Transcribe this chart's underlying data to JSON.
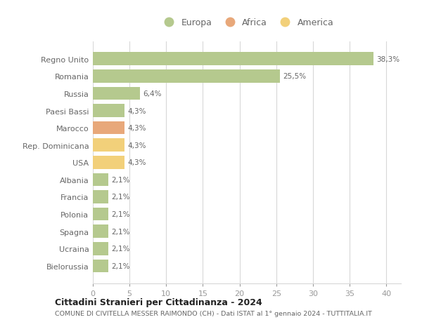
{
  "categories": [
    "Bielorussia",
    "Ucraina",
    "Spagna",
    "Polonia",
    "Francia",
    "Albania",
    "USA",
    "Rep. Dominicana",
    "Marocco",
    "Paesi Bassi",
    "Russia",
    "Romania",
    "Regno Unito"
  ],
  "values": [
    2.1,
    2.1,
    2.1,
    2.1,
    2.1,
    2.1,
    4.3,
    4.3,
    4.3,
    4.3,
    6.4,
    25.5,
    38.3
  ],
  "labels": [
    "2,1%",
    "2,1%",
    "2,1%",
    "2,1%",
    "2,1%",
    "2,1%",
    "4,3%",
    "4,3%",
    "4,3%",
    "4,3%",
    "6,4%",
    "25,5%",
    "38,3%"
  ],
  "colors": [
    "#b5c98e",
    "#b5c98e",
    "#b5c98e",
    "#b5c98e",
    "#b5c98e",
    "#b5c98e",
    "#f2d07a",
    "#f2d07a",
    "#e8a87a",
    "#b5c98e",
    "#b5c98e",
    "#b5c98e",
    "#b5c98e"
  ],
  "legend_labels": [
    "Europa",
    "Africa",
    "America"
  ],
  "legend_colors": [
    "#b5c98e",
    "#e8a87a",
    "#f2d07a"
  ],
  "title": "Cittadini Stranieri per Cittadinanza - 2024",
  "subtitle": "COMUNE DI CIVITELLA MESSER RAIMONDO (CH) - Dati ISTAT al 1° gennaio 2024 - TUTTITALIA.IT",
  "xlim": [
    0,
    42
  ],
  "xticks": [
    0,
    5,
    10,
    15,
    20,
    25,
    30,
    35,
    40
  ],
  "background_color": "#ffffff",
  "grid_color": "#d8d8d8",
  "bar_height": 0.75
}
